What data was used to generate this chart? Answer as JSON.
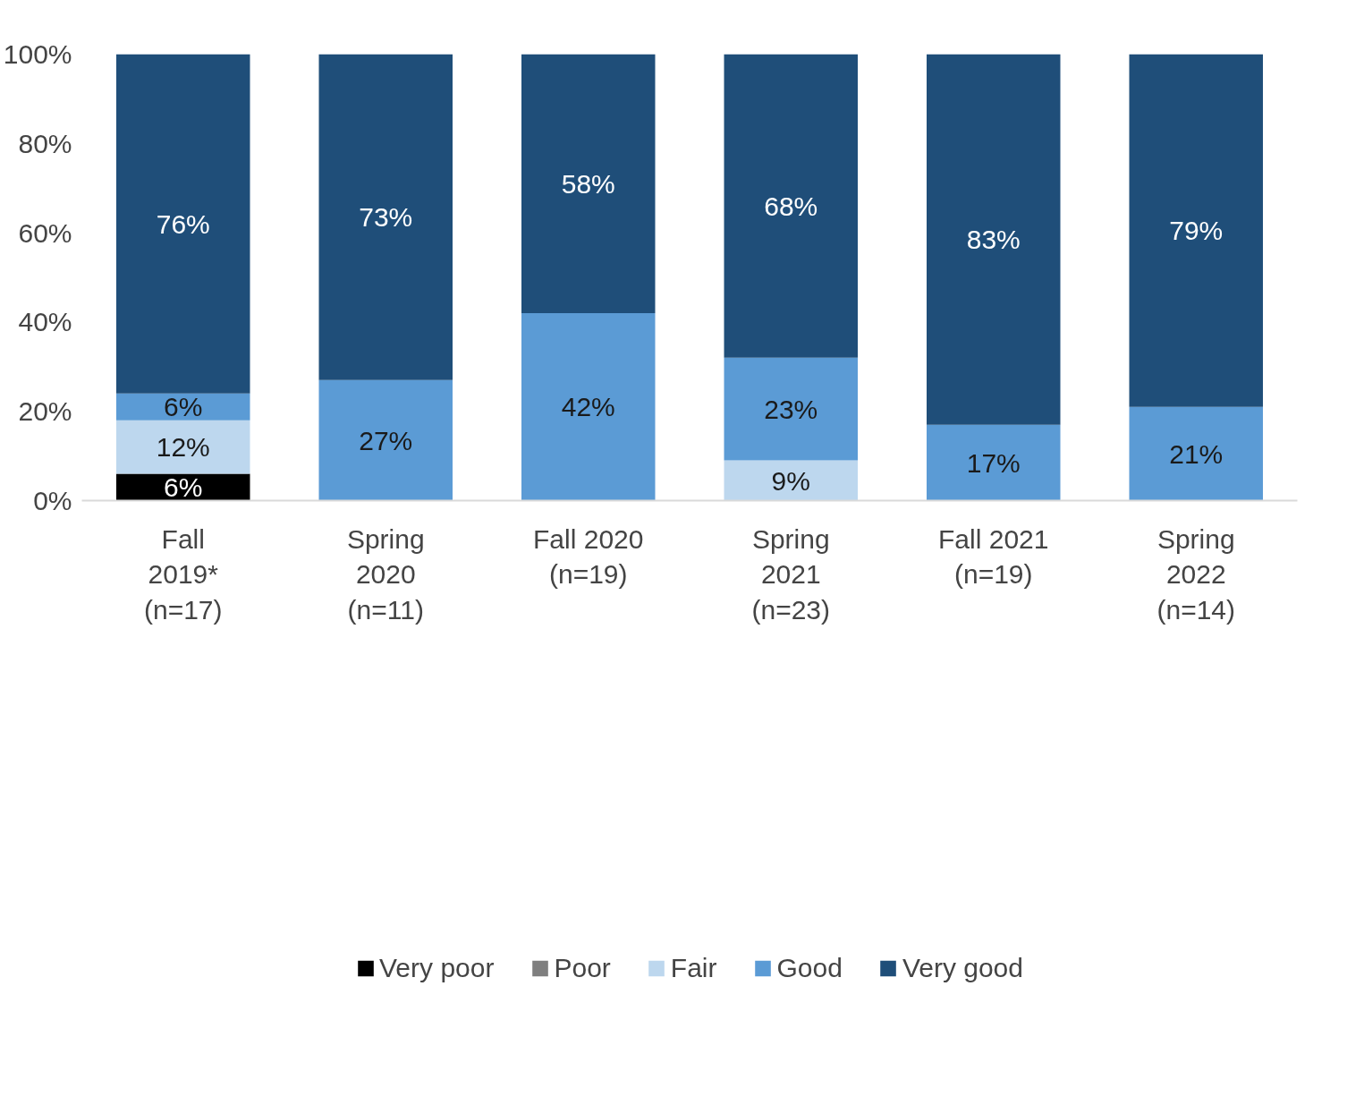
{
  "chart_data": {
    "type": "bar",
    "stacked": true,
    "categories": [
      "Fall\n2019*\n(n=17)",
      "Spring\n2020\n(n=11)",
      "Fall 2020\n(n=19)",
      "Spring\n2021\n(n=23)",
      "Fall 2021\n(n=19)",
      "Spring\n2022\n(n=14)"
    ],
    "series": [
      {
        "name": "Very poor",
        "color": "#000000",
        "values": [
          6,
          0,
          0,
          0,
          0,
          0
        ],
        "value_labels": [
          "6%",
          null,
          null,
          null,
          null,
          null
        ]
      },
      {
        "name": "Poor",
        "color": "#7f7f7f",
        "values": [
          0,
          0,
          0,
          0,
          0,
          0
        ],
        "value_labels": [
          null,
          null,
          null,
          null,
          null,
          null
        ]
      },
      {
        "name": "Fair",
        "color": "#bdd7ee",
        "values": [
          12,
          0,
          0,
          9,
          0,
          0
        ],
        "value_labels": [
          "12%",
          null,
          null,
          "9%",
          null,
          null
        ]
      },
      {
        "name": "Good",
        "color": "#5b9bd5",
        "values": [
          6,
          27,
          42,
          23,
          17,
          21
        ],
        "value_labels": [
          "6%",
          "27%",
          "42%",
          "23%",
          "17%",
          "21%"
        ]
      },
      {
        "name": "Very good",
        "color": "#1f4e79",
        "values": [
          76,
          73,
          58,
          68,
          83,
          79
        ],
        "value_labels": [
          "76%",
          "73%",
          "58%",
          "68%",
          "83%",
          "79%"
        ]
      }
    ],
    "ylim": [
      0,
      100
    ],
    "yticks": [
      {
        "value": 0,
        "label": "0%"
      },
      {
        "value": 20,
        "label": "20%"
      },
      {
        "value": 40,
        "label": "40%"
      },
      {
        "value": 60,
        "label": "60%"
      },
      {
        "value": 80,
        "label": "80%"
      },
      {
        "value": 100,
        "label": "100%"
      }
    ],
    "grid": false,
    "legend": "bottom"
  }
}
